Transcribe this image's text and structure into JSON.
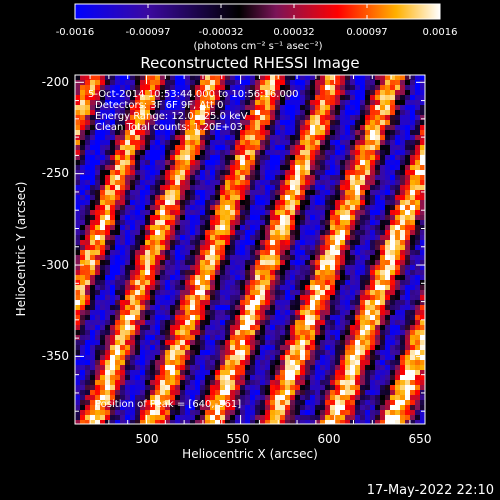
{
  "colorbar": {
    "tick_labels": [
      "-0.0016",
      "-0.00097",
      "-0.00032",
      "0.00032",
      "0.00097",
      "0.0016"
    ],
    "units": "(photons cm⁻² s⁻¹ asec⁻²)",
    "min": -0.0016,
    "max": 0.0016,
    "colors": [
      "#0000ff",
      "#3b0aa0",
      "#000000",
      "#7a1458",
      "#ff0000",
      "#ffb000",
      "#ffffff"
    ]
  },
  "chart_data": {
    "type": "heatmap",
    "title": "Reconstructed RHESSI Image",
    "xlabel": "Heliocentric X (arcsec)",
    "ylabel": "Heliocentric Y (arcsec)",
    "xlim": [
      462,
      648
    ],
    "ylim": [
      -387,
      -196
    ],
    "x_ticks": [
      "500",
      "550",
      "600",
      "650"
    ],
    "y_ticks": [
      "-200",
      "-250",
      "-300",
      "-350"
    ],
    "x_tick_values": [
      500,
      550,
      600,
      650
    ],
    "y_tick_values": [
      -200,
      -250,
      -300,
      -350
    ],
    "annotations": [
      "5-Oct-2014 10:53:44.000 to 10:56:16.000",
      "Detectors: 3F 6F 9F, Att 0",
      "Energy Range: 12.0 - 25.0 keV",
      "Clean     Total counts: 1.20E+03"
    ],
    "peak_label": "Position of Peak = [640,-361]",
    "pattern": "diagonal stripe fringes"
  },
  "timestamp": "17-May-2022 22:10"
}
